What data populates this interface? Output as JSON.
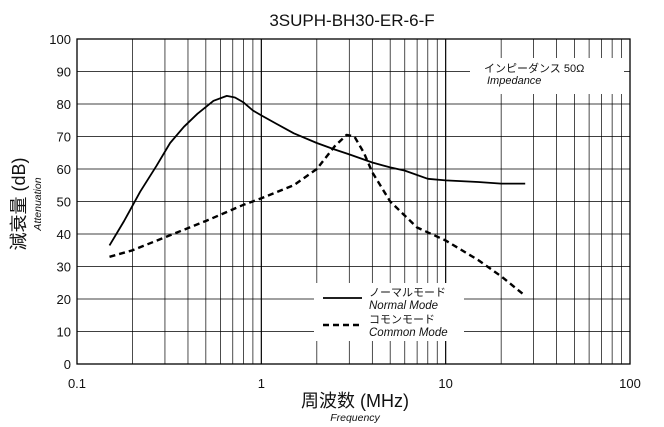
{
  "chart_data": {
    "type": "line",
    "title": "3SUPH-BH30-ER-6-F",
    "xlabel": "周波数 (MHz)",
    "xlabel_sub": "Frequency",
    "ylabel": "減衰量 (dB)",
    "ylabel_sub": "Attenuation",
    "x_scale": "log",
    "xlim": [
      0.1,
      100
    ],
    "ylim": [
      0,
      100
    ],
    "x_ticks": [
      0.1,
      1,
      10,
      100
    ],
    "x_tick_labels": [
      "0.1",
      "1",
      "10",
      "100"
    ],
    "y_ticks": [
      0,
      10,
      20,
      30,
      40,
      50,
      60,
      70,
      80,
      90,
      100
    ],
    "y_tick_labels": [
      "0",
      "10",
      "20",
      "30",
      "40",
      "50",
      "60",
      "70",
      "80",
      "90",
      "100"
    ],
    "grid": true,
    "annotation": {
      "line1": "インピーダンス 50Ω",
      "line2": "Impedance"
    },
    "legend_position": "lower-right",
    "series": [
      {
        "name": "ノーマルモード",
        "name_sub": "Normal Mode",
        "style": "solid",
        "x": [
          0.15,
          0.18,
          0.22,
          0.27,
          0.32,
          0.38,
          0.45,
          0.55,
          0.65,
          0.72,
          0.8,
          0.9,
          1.0,
          1.2,
          1.5,
          2.0,
          2.5,
          3.0,
          4.0,
          5.0,
          6.0,
          8.0,
          10.0,
          15.0,
          20.0,
          27.0
        ],
        "y": [
          36.5,
          44,
          53,
          61,
          68,
          73,
          77,
          81,
          82.5,
          82,
          80.5,
          78,
          76.5,
          74,
          71,
          68,
          66,
          64.5,
          62,
          60.5,
          59.5,
          57,
          56.5,
          56,
          55.5,
          55.5
        ]
      },
      {
        "name": "コモンモード",
        "name_sub": "Common Mode",
        "style": "dashed",
        "x": [
          0.15,
          0.2,
          0.3,
          0.5,
          0.8,
          1.0,
          1.5,
          2.0,
          2.5,
          2.9,
          3.2,
          3.6,
          4.0,
          5.0,
          7.0,
          10.0,
          15.0,
          20.0,
          27.0
        ],
        "y": [
          33,
          35,
          39,
          44,
          49,
          51,
          55,
          60,
          67,
          70.5,
          70,
          65,
          59,
          50,
          42,
          38,
          32,
          27,
          21
        ]
      }
    ]
  }
}
